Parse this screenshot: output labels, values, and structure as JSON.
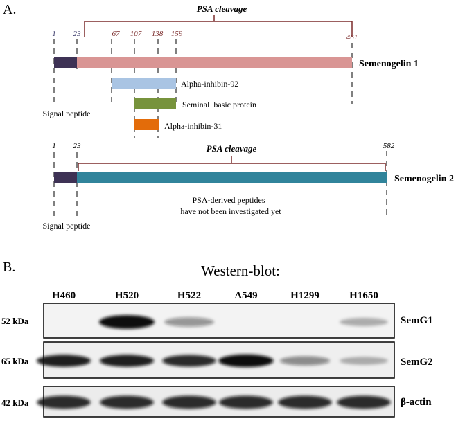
{
  "panel_a": {
    "label": "A.",
    "sg1": {
      "name": "Semenogelin 1",
      "cleavage_label": "PSA cleavage",
      "signal_label": "Signal peptide",
      "positions": [
        "1",
        "23",
        "67",
        "107",
        "138",
        "159",
        "461"
      ],
      "peptides": [
        {
          "name": "Alpha-inhibin-92",
          "color": "#a9c4e3"
        },
        {
          "name": "Seminal  basic protein",
          "color": "#77933c"
        },
        {
          "name": "Alpha-inhibin-31",
          "color": "#e36c0a"
        }
      ],
      "signal_color": "#3e3255",
      "body_color": "#d99594"
    },
    "sg2": {
      "name": "Semenogelin 2",
      "cleavage_label": "PSA cleavage",
      "signal_label": "Signal peptide",
      "positions": [
        "1",
        "23",
        "582"
      ],
      "note_line1": "PSA-derived peptides",
      "note_line2": "have not been investigated yet",
      "signal_color": "#3e3255",
      "body_color": "#31849b"
    },
    "bracket_color": "#7b2c2c"
  },
  "panel_b": {
    "label": "B.",
    "title": "Western-blot:",
    "cell_lines": [
      "H460",
      "H520",
      "H522",
      "A549",
      "H1299",
      "H1650"
    ],
    "rows": [
      {
        "kda": "52 kDa",
        "protein": "SemG1",
        "intensity": [
          0.0,
          1.0,
          0.3,
          0.0,
          0.0,
          0.15
        ]
      },
      {
        "kda": "65 kDa",
        "protein": "SemG2",
        "intensity": [
          0.85,
          0.85,
          0.8,
          0.95,
          0.35,
          0.15
        ]
      },
      {
        "kda": "42 kDa",
        "protein": "β-actin",
        "intensity": [
          0.8,
          0.8,
          0.8,
          0.8,
          0.8,
          0.8
        ]
      }
    ]
  }
}
